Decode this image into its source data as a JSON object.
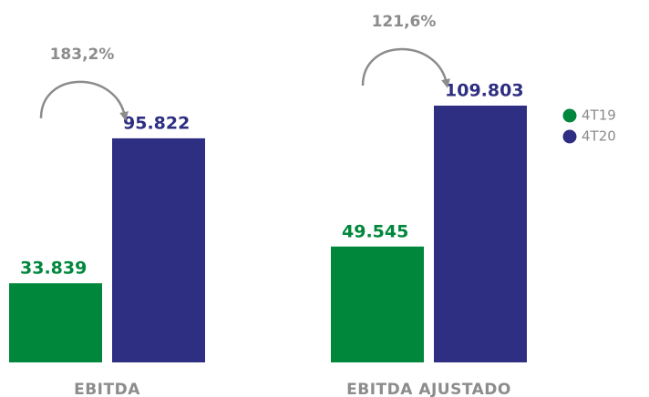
{
  "chart_data": {
    "type": "bar",
    "categories": [
      "EBITDA",
      "EBITDA AJUSTADO"
    ],
    "series": [
      {
        "name": "4T19",
        "color": "#00873c",
        "values": [
          33839,
          49545
        ],
        "value_labels": [
          "33.839",
          "49.545"
        ]
      },
      {
        "name": "4T20",
        "color": "#2e2e82",
        "values": [
          95822,
          109803
        ],
        "value_labels": [
          "95.822",
          "109.803"
        ]
      }
    ],
    "annotations": [
      "183,2%",
      "121,6%"
    ],
    "legend": "right"
  }
}
